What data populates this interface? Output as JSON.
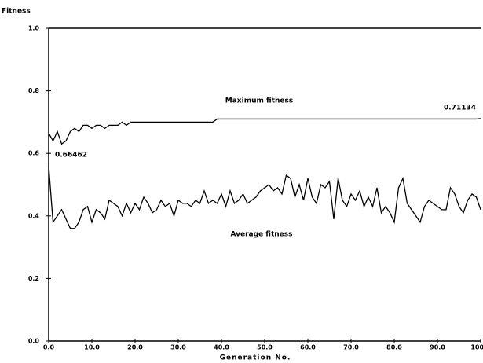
{
  "chart_data": {
    "type": "line",
    "y_label": "Fitness",
    "x_label": "Generation No.",
    "annotations": [
      "Maximum fitness",
      "0.71134",
      "0.66462",
      "Average fitness"
    ],
    "x": [
      0,
      1,
      2,
      3,
      4,
      5,
      6,
      7,
      8,
      9,
      10,
      11,
      12,
      13,
      14,
      15,
      16,
      17,
      18,
      19,
      20,
      21,
      22,
      23,
      24,
      25,
      26,
      27,
      28,
      29,
      30,
      31,
      32,
      33,
      34,
      35,
      36,
      37,
      38,
      39,
      40,
      41,
      42,
      43,
      44,
      45,
      46,
      47,
      48,
      49,
      50,
      51,
      52,
      53,
      54,
      55,
      56,
      57,
      58,
      59,
      60,
      61,
      62,
      63,
      64,
      65,
      66,
      67,
      68,
      69,
      70,
      71,
      72,
      73,
      74,
      75,
      76,
      77,
      78,
      79,
      80,
      81,
      82,
      83,
      84,
      85,
      86,
      87,
      88,
      89,
      90,
      91,
      92,
      93,
      94,
      95,
      96,
      97,
      98,
      99,
      100
    ],
    "series": [
      {
        "name": "Maximum fitness",
        "color": "#000000",
        "values": [
          0.66462,
          0.64,
          0.67,
          0.63,
          0.64,
          0.67,
          0.68,
          0.67,
          0.69,
          0.69,
          0.68,
          0.69,
          0.69,
          0.68,
          0.69,
          0.69,
          0.69,
          0.7,
          0.69,
          0.7,
          0.7,
          0.7,
          0.7,
          0.7,
          0.7,
          0.7,
          0.7,
          0.7,
          0.7,
          0.7,
          0.7,
          0.7,
          0.7,
          0.7,
          0.7,
          0.7,
          0.7,
          0.7,
          0.7,
          0.71,
          0.71,
          0.71,
          0.71,
          0.71,
          0.71,
          0.71,
          0.71,
          0.71,
          0.71,
          0.71,
          0.71,
          0.71,
          0.71,
          0.71,
          0.71,
          0.71,
          0.71,
          0.71,
          0.71,
          0.71,
          0.71,
          0.71,
          0.71,
          0.71,
          0.71,
          0.71,
          0.71,
          0.71,
          0.71,
          0.71,
          0.71,
          0.71,
          0.71,
          0.71,
          0.71,
          0.71,
          0.71,
          0.71,
          0.71,
          0.71,
          0.71,
          0.71,
          0.71,
          0.71,
          0.71,
          0.71,
          0.71,
          0.71,
          0.71,
          0.71,
          0.71,
          0.71,
          0.71,
          0.71,
          0.71,
          0.71,
          0.71,
          0.71,
          0.71,
          0.71,
          0.71134
        ]
      },
      {
        "name": "Average fitness",
        "color": "#000000",
        "values": [
          0.56,
          0.38,
          0.4,
          0.42,
          0.39,
          0.36,
          0.36,
          0.38,
          0.42,
          0.43,
          0.38,
          0.42,
          0.41,
          0.39,
          0.45,
          0.44,
          0.43,
          0.4,
          0.44,
          0.41,
          0.44,
          0.42,
          0.46,
          0.44,
          0.41,
          0.42,
          0.45,
          0.43,
          0.44,
          0.4,
          0.45,
          0.44,
          0.44,
          0.43,
          0.45,
          0.44,
          0.48,
          0.44,
          0.45,
          0.44,
          0.47,
          0.43,
          0.48,
          0.44,
          0.45,
          0.47,
          0.44,
          0.45,
          0.46,
          0.48,
          0.49,
          0.5,
          0.48,
          0.49,
          0.47,
          0.53,
          0.52,
          0.46,
          0.5,
          0.45,
          0.52,
          0.46,
          0.44,
          0.5,
          0.49,
          0.51,
          0.39,
          0.52,
          0.45,
          0.43,
          0.47,
          0.45,
          0.48,
          0.43,
          0.46,
          0.43,
          0.49,
          0.41,
          0.43,
          0.41,
          0.38,
          0.49,
          0.52,
          0.44,
          0.42,
          0.4,
          0.38,
          0.43,
          0.45,
          0.44,
          0.43,
          0.42,
          0.42,
          0.49,
          0.47,
          0.43,
          0.41,
          0.45,
          0.47,
          0.46,
          0.42
        ]
      }
    ],
    "xlim": [
      0,
      100
    ],
    "ylim": [
      0,
      1
    ],
    "xticks": [
      {
        "value": 0,
        "label": "0.0"
      },
      {
        "value": 10,
        "label": "10.0"
      },
      {
        "value": 20,
        "label": "20.0"
      },
      {
        "value": 30,
        "label": "30.0"
      },
      {
        "value": 40,
        "label": "40.0"
      },
      {
        "value": 50,
        "label": "50.0"
      },
      {
        "value": 60,
        "label": "60.0"
      },
      {
        "value": 70,
        "label": "70.0"
      },
      {
        "value": 80,
        "label": "80.0"
      },
      {
        "value": 90,
        "label": "90.0"
      },
      {
        "value": 100,
        "label": "100.0"
      }
    ],
    "yticks": [
      {
        "value": 0,
        "label": "0.0"
      },
      {
        "value": 0.2,
        "label": "0.2"
      },
      {
        "value": 0.4,
        "label": "0.4"
      },
      {
        "value": 0.6,
        "label": "0.6"
      },
      {
        "value": 0.8,
        "label": "0.8"
      },
      {
        "value": 1,
        "label": "1.0"
      }
    ],
    "grid": false
  }
}
